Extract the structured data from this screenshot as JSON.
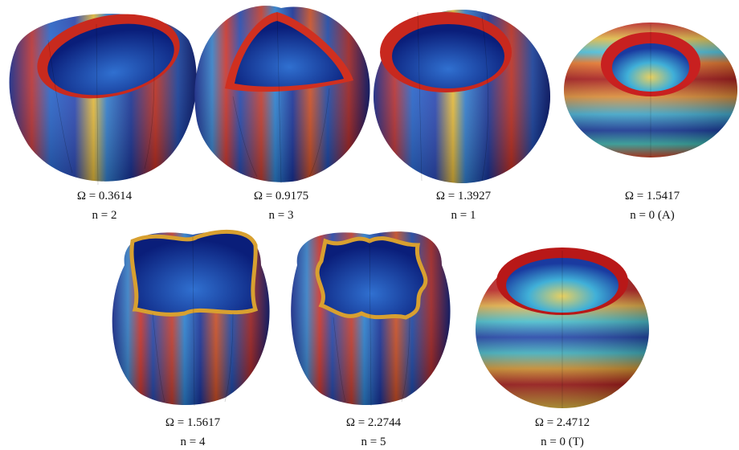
{
  "panels": [
    {
      "omega": "Ω = 0.3614",
      "n": "n = 2"
    },
    {
      "omega": "Ω = 0.9175",
      "n": "n = 3"
    },
    {
      "omega": "Ω = 1.3927",
      "n": "n = 1"
    },
    {
      "omega": "Ω = 1.5417",
      "n": "n = 0 (A)"
    },
    {
      "omega": "Ω = 1.5617",
      "n": "n = 4"
    },
    {
      "omega": "Ω = 2.2744",
      "n": "n = 5"
    },
    {
      "omega": "Ω = 2.4712",
      "n": "n = 0 (T)"
    }
  ]
}
